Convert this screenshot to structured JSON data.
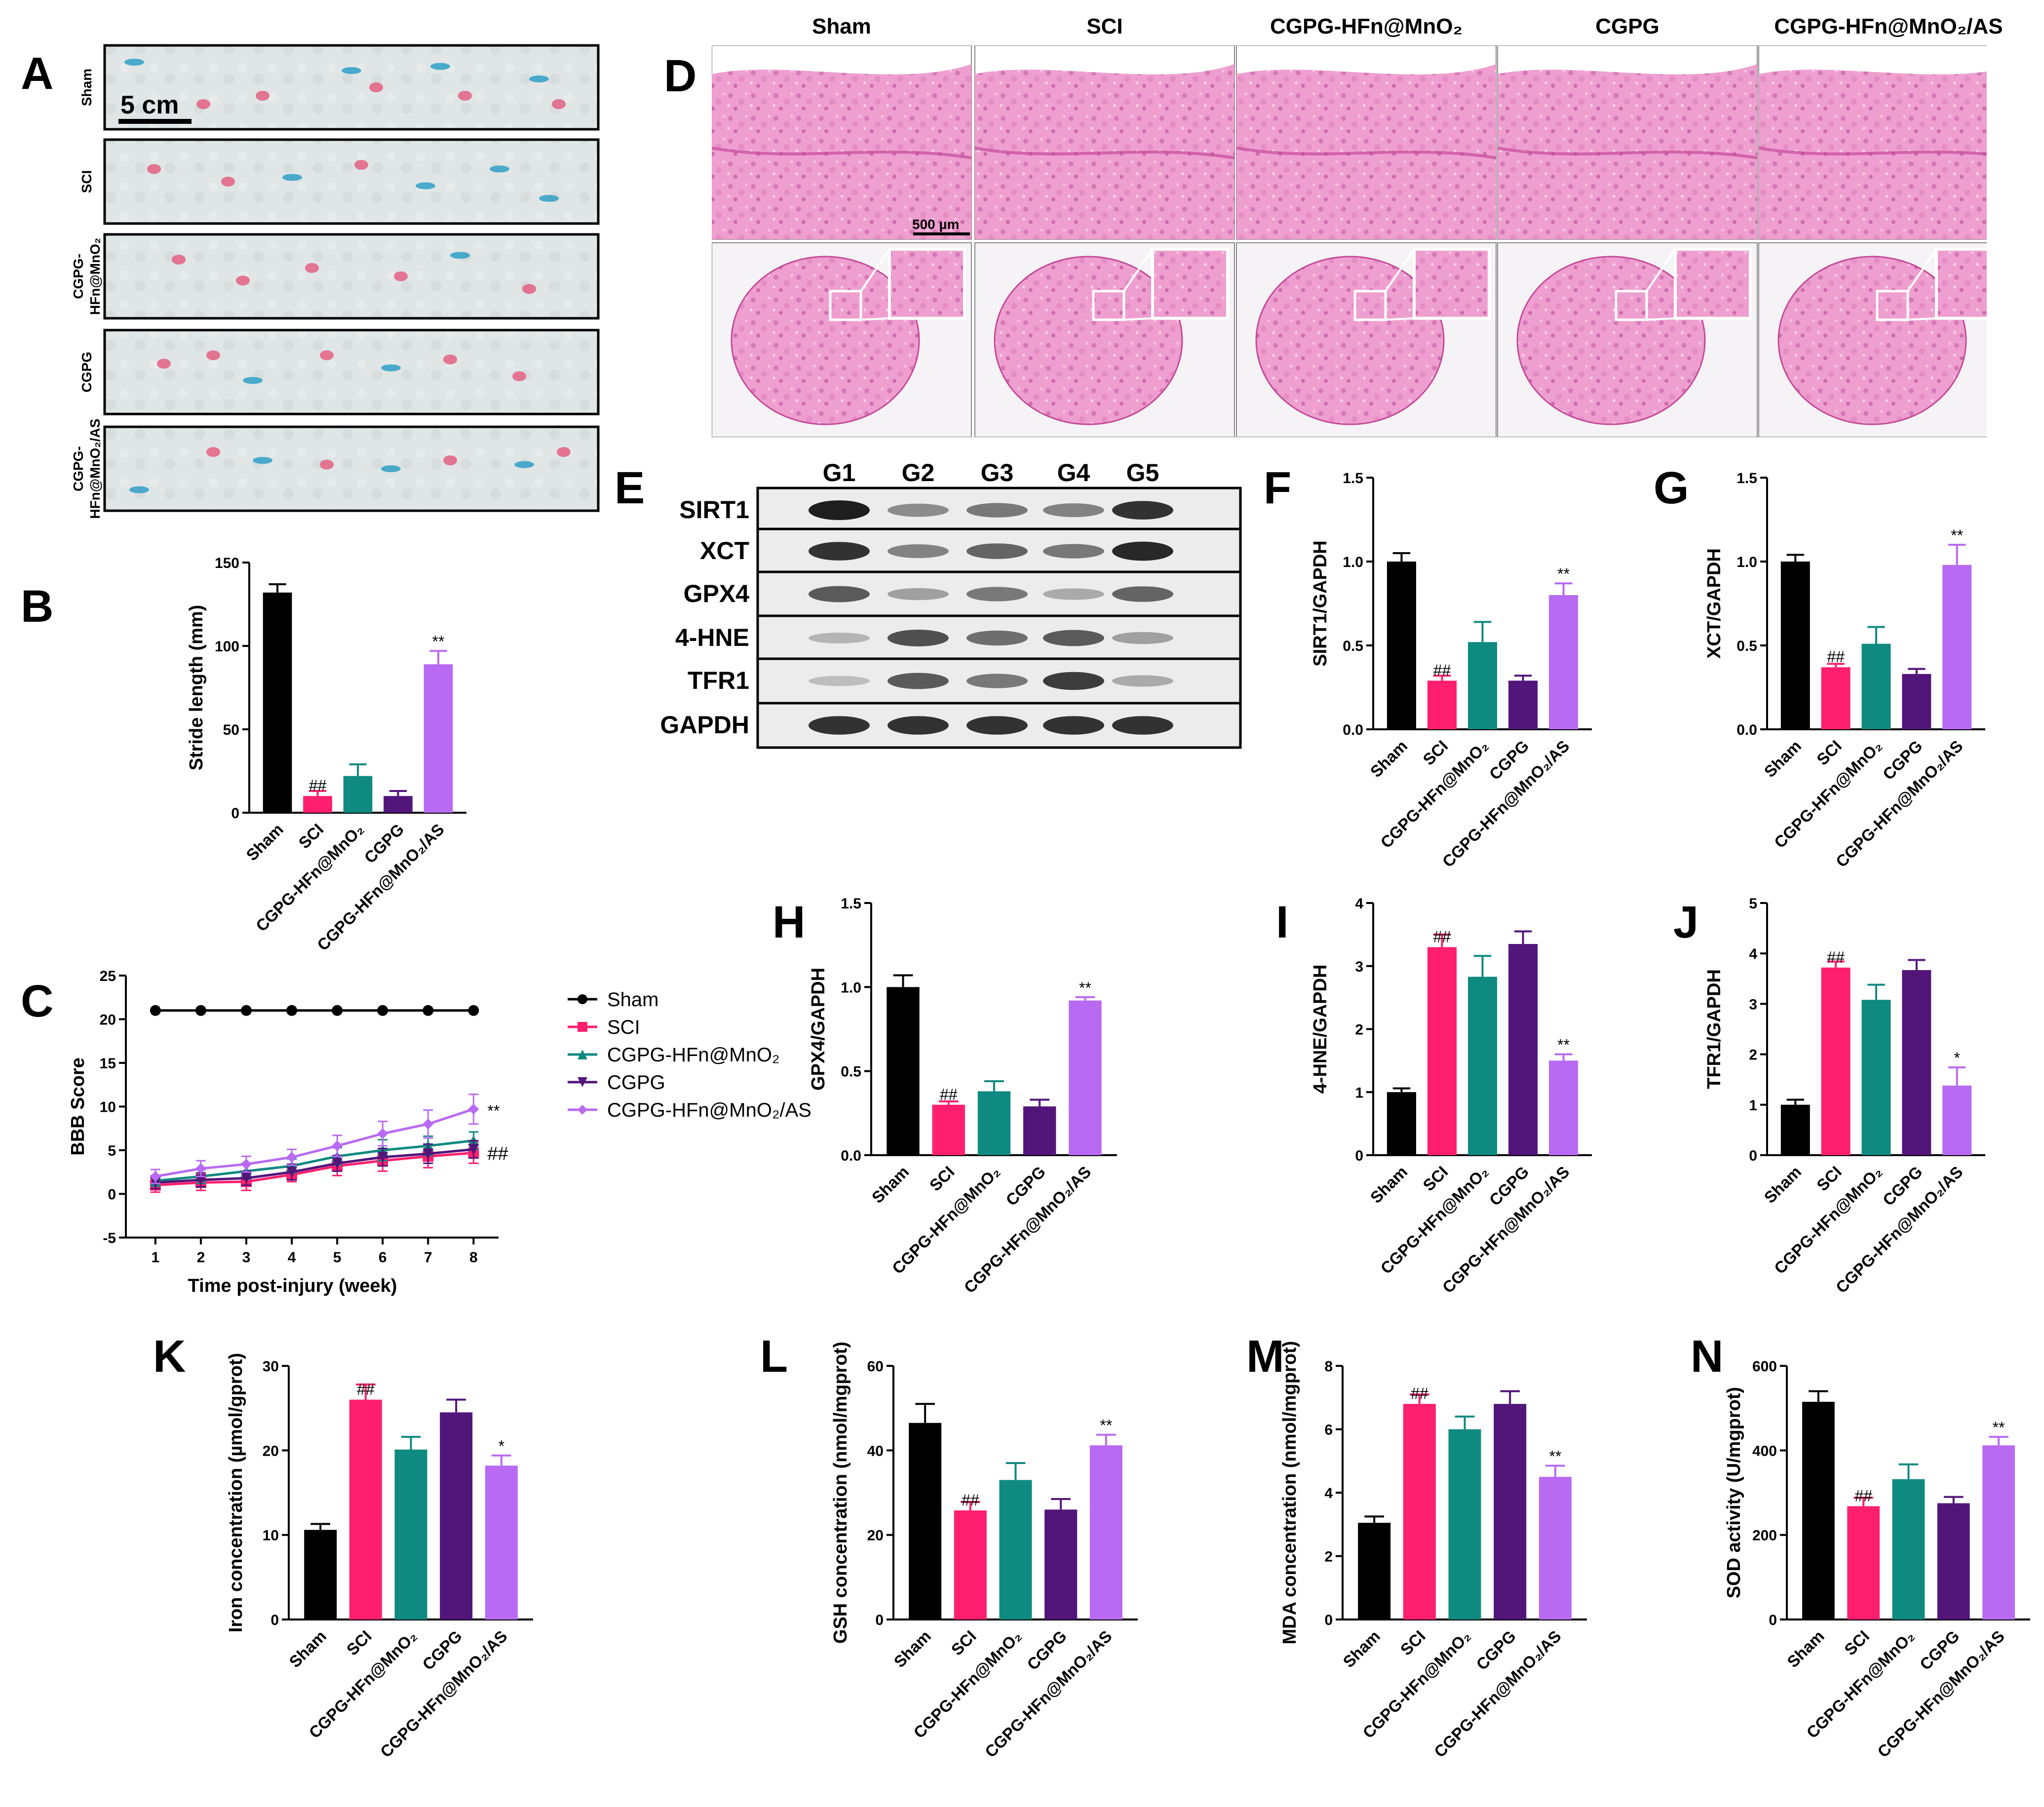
{
  "colors": {
    "sham": "#000000",
    "sci": "#ff1f6e",
    "hfn": "#0f8a80",
    "cgpg": "#52157a",
    "as": "#b86af2",
    "he_pink": "#e88fc4",
    "he_dark": "#c44a9a"
  },
  "panel_labels": [
    "A",
    "B",
    "C",
    "D",
    "E",
    "F",
    "G",
    "H",
    "I",
    "J",
    "K",
    "L",
    "M",
    "N"
  ],
  "panel_A": {
    "scale_bar": "5 cm",
    "rows": [
      "Sham",
      "SCI",
      "CGPG-HFn@MnO₂",
      "CGPG",
      "CGPG-HFn@MnO₂/AS"
    ],
    "rows_display": [
      [
        "Sham"
      ],
      [
        "SCI"
      ],
      [
        "CGPG-",
        "HFn@MnO₂"
      ],
      [
        "CGPG"
      ],
      [
        "CGPG-",
        "HFn@MnO₂/AS"
      ]
    ]
  },
  "panel_D": {
    "columns": [
      "Sham",
      "SCI",
      "CGPG-HFn@MnO₂",
      "CGPG",
      "CGPG-HFn@MnO₂/AS"
    ],
    "scale_bar": "500 µm"
  },
  "panel_E": {
    "lanes": [
      "G1",
      "G2",
      "G3",
      "G4",
      "G5"
    ],
    "proteins": [
      "SIRT1",
      "XCT",
      "GPX4",
      "4-HNE",
      "TFR1",
      "GAPDH"
    ],
    "band_intensity": [
      [
        1.0,
        0.45,
        0.55,
        0.5,
        0.9
      ],
      [
        0.9,
        0.5,
        0.65,
        0.55,
        0.95
      ],
      [
        0.7,
        0.35,
        0.55,
        0.3,
        0.65
      ],
      [
        0.25,
        0.75,
        0.6,
        0.7,
        0.35
      ],
      [
        0.2,
        0.7,
        0.55,
        0.85,
        0.3
      ],
      [
        0.9,
        0.9,
        0.9,
        0.9,
        0.9
      ]
    ]
  },
  "groups": [
    "Sham",
    "SCI",
    "CGPG-HFn@MnO₂",
    "CGPG",
    "CGPG-HFn@MnO₂/AS"
  ],
  "chart_data": [
    {
      "id": "B",
      "type": "bar",
      "ylabel": "Stride length (mm)",
      "ylim": [
        0,
        150
      ],
      "yticks": [
        0,
        50,
        100,
        150
      ],
      "values": [
        132,
        10,
        22,
        10,
        89
      ],
      "errors": [
        5,
        3,
        7,
        3,
        8
      ],
      "sig": [
        "",
        "##",
        "",
        "",
        "**"
      ]
    },
    {
      "id": "C",
      "type": "line",
      "title": "",
      "xlabel": "Time post-injury (week)",
      "ylabel": "BBB Score",
      "x": [
        1,
        2,
        3,
        4,
        5,
        6,
        7,
        8
      ],
      "xticks": [
        1,
        2,
        3,
        4,
        5,
        6,
        7,
        8
      ],
      "ylim": [
        -5,
        25
      ],
      "yticks": [
        -5,
        0,
        5,
        10,
        15,
        20,
        25
      ],
      "series": [
        {
          "name": "Sham",
          "values": [
            21,
            21,
            21,
            21,
            21,
            21,
            21,
            21
          ],
          "errors": [
            0,
            0,
            0,
            0,
            0,
            0,
            0,
            0
          ],
          "marker": "circle"
        },
        {
          "name": "SCI",
          "values": [
            1.0,
            1.3,
            1.4,
            2.2,
            3.2,
            3.8,
            4.3,
            4.7
          ],
          "errors": [
            0.8,
            0.9,
            1.0,
            0.8,
            1.1,
            1.2,
            1.3,
            1.2
          ],
          "marker": "square"
        },
        {
          "name": "CGPG-HFn@MnO₂",
          "values": [
            1.5,
            2.0,
            2.6,
            3.2,
            4.3,
            5.0,
            5.5,
            6.1
          ],
          "errors": [
            0.6,
            0.8,
            0.9,
            0.8,
            1.0,
            1.2,
            1.1,
            1.0
          ],
          "marker": "triangle"
        },
        {
          "name": "CGPG",
          "values": [
            1.3,
            1.6,
            1.8,
            2.5,
            3.5,
            4.2,
            4.6,
            5.1
          ],
          "errors": [
            0.7,
            0.8,
            0.8,
            0.9,
            0.9,
            1.0,
            1.1,
            1.0
          ],
          "marker": "triangle-down"
        },
        {
          "name": "CGPG-HFn@MnO₂/AS",
          "values": [
            2.0,
            2.9,
            3.4,
            4.2,
            5.5,
            6.9,
            8.0,
            9.7
          ],
          "errors": [
            0.8,
            0.9,
            0.9,
            0.9,
            1.2,
            1.4,
            1.6,
            1.7
          ],
          "marker": "diamond"
        }
      ],
      "end_labels": [
        "**",
        "##"
      ]
    },
    {
      "id": "F",
      "type": "bar",
      "ylabel": "SIRT1/GAPDH",
      "ylim": [
        0,
        1.5
      ],
      "yticks": [
        0.0,
        0.5,
        1.0,
        1.5
      ],
      "values": [
        1.0,
        0.29,
        0.52,
        0.29,
        0.8
      ],
      "errors": [
        0.05,
        0.03,
        0.12,
        0.03,
        0.07
      ],
      "sig": [
        "",
        "##",
        "",
        "",
        "**"
      ]
    },
    {
      "id": "G",
      "type": "bar",
      "ylabel": "XCT/GAPDH",
      "ylim": [
        0,
        1.5
      ],
      "yticks": [
        0.0,
        0.5,
        1.0,
        1.5
      ],
      "values": [
        1.0,
        0.37,
        0.51,
        0.33,
        0.98
      ],
      "errors": [
        0.04,
        0.02,
        0.1,
        0.03,
        0.12
      ],
      "sig": [
        "",
        "##",
        "",
        "",
        "**"
      ]
    },
    {
      "id": "H",
      "type": "bar",
      "ylabel": "GPX4/GAPDH",
      "ylim": [
        0,
        1.5
      ],
      "yticks": [
        0.0,
        0.5,
        1.0,
        1.5
      ],
      "values": [
        1.0,
        0.3,
        0.38,
        0.29,
        0.92
      ],
      "errors": [
        0.07,
        0.02,
        0.06,
        0.04,
        0.02
      ],
      "sig": [
        "",
        "##",
        "",
        "",
        "**"
      ]
    },
    {
      "id": "I",
      "type": "bar",
      "ylabel": "4-HNE/GAPDH",
      "ylim": [
        0,
        4
      ],
      "yticks": [
        0,
        1,
        2,
        3,
        4
      ],
      "values": [
        1.0,
        3.3,
        2.83,
        3.35,
        1.5
      ],
      "errors": [
        0.06,
        0.2,
        0.33,
        0.2,
        0.1
      ],
      "sig": [
        "",
        "##",
        "",
        "",
        "**"
      ]
    },
    {
      "id": "J",
      "type": "bar",
      "ylabel": "TFR1/GAPDH",
      "ylim": [
        0,
        5
      ],
      "yticks": [
        0,
        1,
        2,
        3,
        4,
        5
      ],
      "values": [
        1.0,
        3.72,
        3.08,
        3.67,
        1.38
      ],
      "errors": [
        0.1,
        0.12,
        0.3,
        0.2,
        0.36
      ],
      "sig": [
        "",
        "##",
        "",
        "",
        "*"
      ]
    },
    {
      "id": "K",
      "type": "bar",
      "ylabel": "Iron concentration (µmol/gprot)",
      "ylim": [
        0,
        30
      ],
      "yticks": [
        0,
        10,
        20,
        30
      ],
      "values": [
        10.6,
        26.0,
        20.1,
        24.5,
        18.2
      ],
      "errors": [
        0.7,
        1.8,
        1.5,
        1.5,
        1.2
      ],
      "sig": [
        "",
        "##",
        "",
        "",
        "*"
      ]
    },
    {
      "id": "L",
      "type": "bar",
      "ylabel": "GSH concentration (nmol/mgprot)",
      "ylim": [
        0,
        60
      ],
      "yticks": [
        0,
        20,
        40,
        60
      ],
      "values": [
        46.5,
        25.8,
        33.0,
        26.0,
        41.2
      ],
      "errors": [
        4.5,
        2.0,
        4.0,
        2.5,
        2.5
      ],
      "sig": [
        "",
        "##",
        "",
        "",
        "**"
      ]
    },
    {
      "id": "M",
      "type": "bar",
      "ylabel": "MDA concentration (nmol/mgprot)",
      "ylim": [
        0,
        8
      ],
      "yticks": [
        0,
        2,
        4,
        6,
        8
      ],
      "values": [
        3.05,
        6.8,
        6.0,
        6.8,
        4.5
      ],
      "errors": [
        0.2,
        0.3,
        0.4,
        0.4,
        0.35
      ],
      "sig": [
        "",
        "##",
        "",
        "",
        "**"
      ]
    },
    {
      "id": "N",
      "type": "bar",
      "ylabel": "SOD activity (U/mgprot)",
      "ylim": [
        0,
        600
      ],
      "yticks": [
        0,
        200,
        400,
        600
      ],
      "values": [
        515,
        268,
        332,
        275,
        412
      ],
      "errors": [
        25,
        20,
        35,
        15,
        20
      ],
      "sig": [
        "",
        "##",
        "",
        "",
        "**"
      ]
    }
  ]
}
